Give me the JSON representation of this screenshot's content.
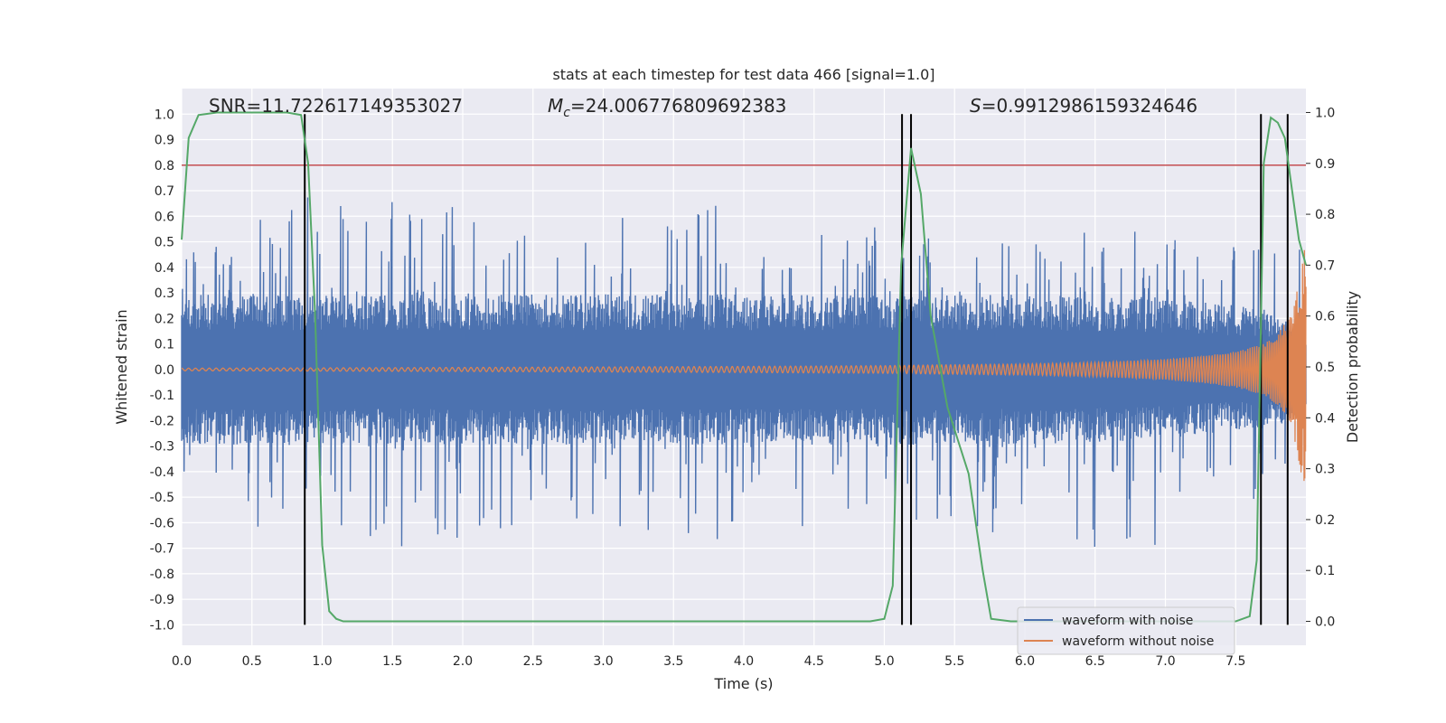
{
  "chart_data": {
    "type": "line",
    "title": "stats at each timestep for test data 466 [signal=1.0]",
    "xlabel": "Time (s)",
    "ylabel": "Whitened strain",
    "y2label": "Detection probability",
    "xlim": [
      0.0,
      8.0
    ],
    "ylim": [
      -1.08,
      1.1
    ],
    "y2lim": [
      -0.047,
      1.047
    ],
    "x_ticks": [
      "0.0",
      "0.5",
      "1.0",
      "1.5",
      "2.0",
      "2.5",
      "3.0",
      "3.5",
      "4.0",
      "4.5",
      "5.0",
      "5.5",
      "6.0",
      "6.5",
      "7.0",
      "7.5"
    ],
    "y_ticks": [
      "1.0",
      "0.9",
      "0.8",
      "0.7",
      "0.6",
      "0.5",
      "0.4",
      "0.3",
      "0.2",
      "0.1",
      "0.0",
      "-0.1",
      "-0.2",
      "-0.3",
      "-0.4",
      "-0.5",
      "-0.6",
      "-0.7",
      "-0.8",
      "-0.9",
      "-1.0"
    ],
    "y2_ticks": [
      "1.0",
      "0.9",
      "0.8",
      "0.7",
      "0.6",
      "0.5",
      "0.4",
      "0.3",
      "0.2",
      "0.1",
      "0.0"
    ],
    "annotations": {
      "snr": "SNR=11.722617149353027",
      "mc_symbol": "M",
      "mc_sub": "c",
      "mc_value": "=24.006776809692383",
      "s_symbol": "S",
      "s_value": "=0.9912986159324646"
    },
    "threshold": 0.8,
    "vlines": [
      0.876,
      5.126,
      5.19,
      7.68,
      7.87
    ],
    "noise_envelope": {
      "x": [
        0.0,
        1.0,
        2.0,
        3.0,
        4.0,
        5.0,
        6.0,
        6.5,
        7.0,
        7.3,
        7.5,
        7.7,
        7.9,
        8.0
      ],
      "upper": [
        0.28,
        0.28,
        0.28,
        0.28,
        0.28,
        0.28,
        0.28,
        0.27,
        0.26,
        0.25,
        0.24,
        0.22,
        0.19,
        0.17
      ],
      "spike_upper": [
        0.45,
        0.72,
        0.66,
        0.62,
        0.65,
        0.55,
        0.5,
        0.55,
        0.58,
        0.6,
        0.5,
        0.5,
        0.48,
        0.62
      ],
      "lower": [
        -0.28,
        -0.28,
        -0.28,
        -0.28,
        -0.28,
        -0.28,
        -0.28,
        -0.27,
        -0.26,
        -0.24,
        -0.23,
        -0.22,
        -0.2,
        -0.18
      ],
      "spike_lower": [
        -0.58,
        -0.72,
        -0.68,
        -0.62,
        -0.68,
        -0.62,
        -0.65,
        -0.7,
        -0.7,
        -0.65,
        -0.6,
        -0.62,
        -0.72,
        -0.65
      ]
    },
    "clean_waveform_amplitude": {
      "x": [
        0.0,
        2.0,
        4.0,
        5.0,
        6.0,
        6.5,
        7.0,
        7.3,
        7.5,
        7.7,
        7.8,
        7.9,
        8.0
      ],
      "amp": [
        0.005,
        0.008,
        0.012,
        0.015,
        0.022,
        0.028,
        0.04,
        0.055,
        0.07,
        0.1,
        0.14,
        0.22,
        0.5
      ]
    },
    "detection_probability": {
      "x": [
        0.0,
        0.05,
        0.12,
        0.25,
        0.5,
        0.75,
        0.85,
        0.9,
        0.95,
        1.0,
        1.05,
        1.1,
        1.15,
        1.5,
        2.0,
        3.0,
        4.0,
        4.9,
        5.0,
        5.06,
        5.12,
        5.19,
        5.26,
        5.33,
        5.45,
        5.6,
        5.7,
        5.76,
        5.9,
        6.5,
        7.0,
        7.5,
        7.6,
        7.65,
        7.7,
        7.75,
        7.8,
        7.85,
        7.9,
        7.95,
        8.0
      ],
      "y": [
        0.75,
        0.95,
        0.995,
        1.0,
        1.0,
        1.0,
        0.995,
        0.9,
        0.6,
        0.15,
        0.02,
        0.005,
        0.0,
        0.0,
        0.0,
        0.0,
        0.0,
        0.0,
        0.005,
        0.07,
        0.7,
        0.93,
        0.84,
        0.6,
        0.42,
        0.29,
        0.1,
        0.005,
        0.0,
        0.0,
        0.0,
        0.0,
        0.01,
        0.12,
        0.9,
        0.99,
        0.98,
        0.95,
        0.85,
        0.75,
        0.7
      ]
    },
    "series": [
      {
        "name": "waveform with noise",
        "color": "#4c72b0"
      },
      {
        "name": "waveform without noise",
        "color": "#dd8452"
      },
      {
        "name": "detection probability",
        "color": "#55a868"
      }
    ],
    "threshold_color": "#c44e52",
    "vline_color": "#000000",
    "background": "#eaeaf2",
    "grid_color": "#ffffff"
  }
}
